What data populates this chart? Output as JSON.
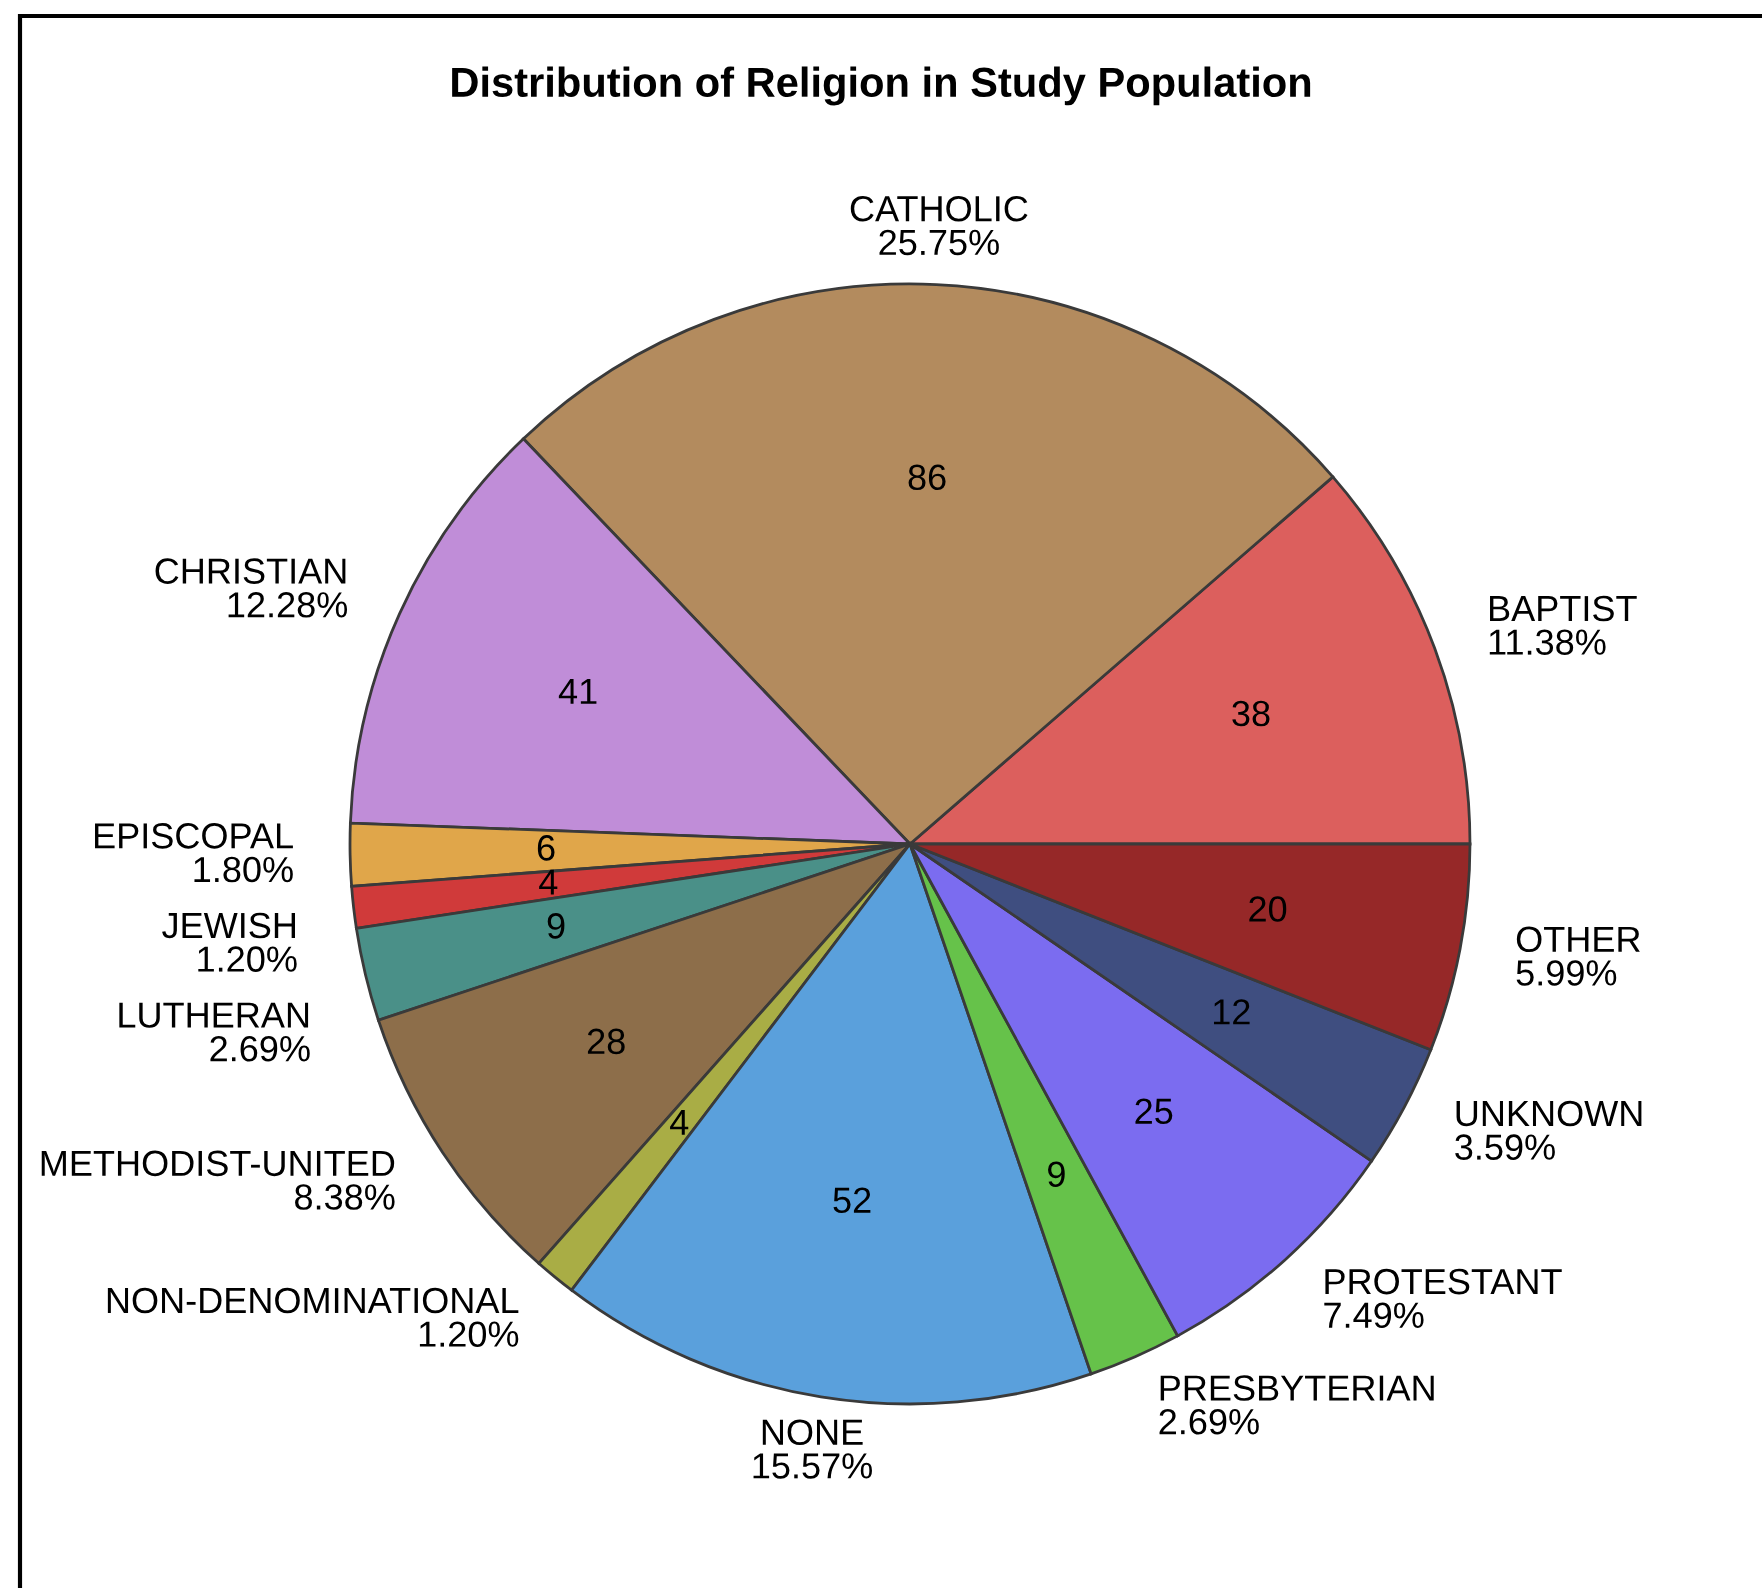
{
  "chart_data": {
    "type": "pie",
    "title": "Distribution of Religion in Study Population",
    "categories": [
      "BAPTIST",
      "CATHOLIC",
      "CHRISTIAN",
      "EPISCOPAL",
      "JEWISH",
      "LUTHERAN",
      "METHODIST-UNITED",
      "NON-DENOMINATIONAL",
      "NONE",
      "PRESBYTERIAN",
      "PROTESTANT",
      "UNKNOWN",
      "OTHER"
    ],
    "values": [
      11.38,
      25.75,
      12.28,
      1.8,
      1.2,
      2.69,
      8.38,
      1.2,
      15.57,
      2.69,
      7.49,
      3.59,
      5.99
    ],
    "value_labels": [
      "11.38%",
      "25.75%",
      "12.28%",
      "1.80%",
      "1.20%",
      "2.69%",
      "8.38%",
      "1.20%",
      "15.57%",
      "2.69%",
      "7.49%",
      "3.59%",
      "5.99%"
    ],
    "colors": [
      "#dc5f5d",
      "#b38b5e",
      "#c08dd8",
      "#e0a64a",
      "#d03a3a",
      "#4a9088",
      "#8d6e4a",
      "#a9ad45",
      "#5aa0dc",
      "#66c24a",
      "#7b6cf0",
      "#3f4e80",
      "#962828"
    ],
    "annotations": [
      "38",
      "86",
      "41",
      "6",
      "4",
      "9",
      "28",
      "4",
      "52",
      "9",
      "25",
      "12",
      "20"
    ]
  }
}
